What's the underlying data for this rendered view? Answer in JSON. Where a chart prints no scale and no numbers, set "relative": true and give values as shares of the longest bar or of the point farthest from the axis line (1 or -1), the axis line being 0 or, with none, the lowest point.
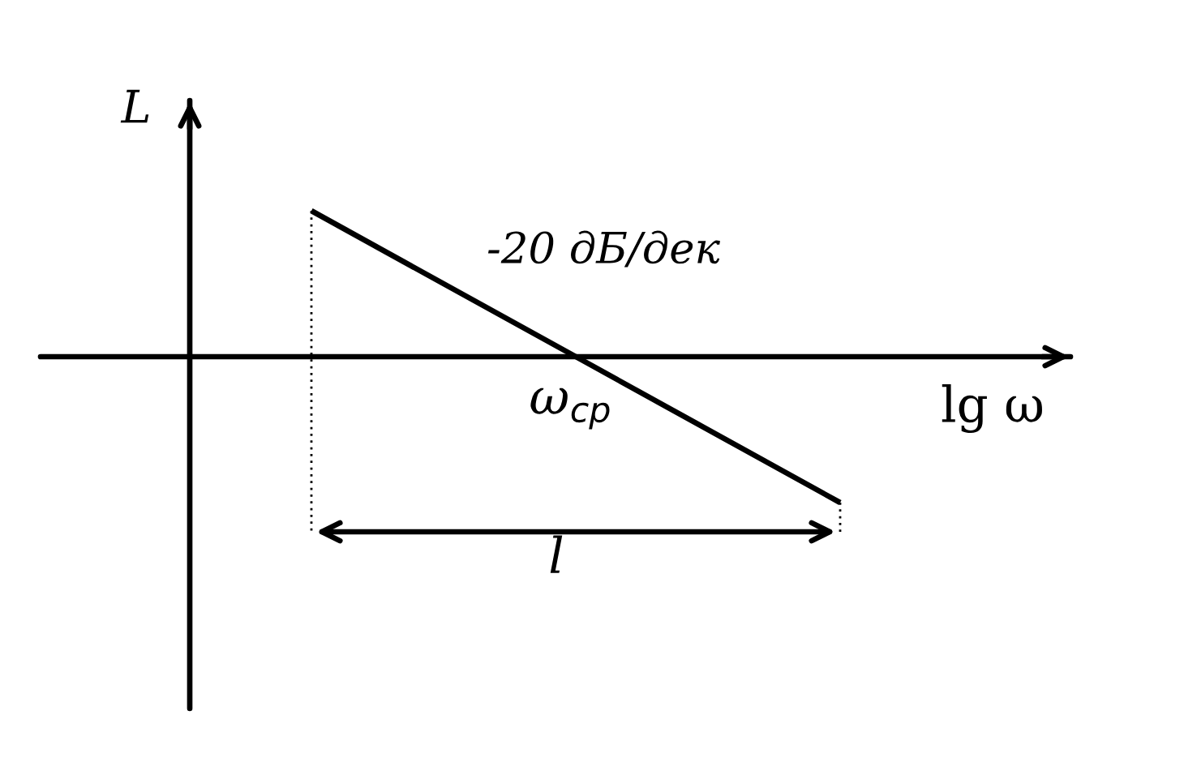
{
  "chart_data": {
    "type": "line",
    "relative": true,
    "categories": [
      null,
      null
    ],
    "series": [
      {
        "color": "#000000",
        "values": [
          1,
          -1
        ]
      }
    ],
    "xlabel": "lg ω",
    "ylabel": "L",
    "annotations": [
      "-20 дБ/дек",
      "ω$_{ср}$",
      "l"
    ]
  }
}
